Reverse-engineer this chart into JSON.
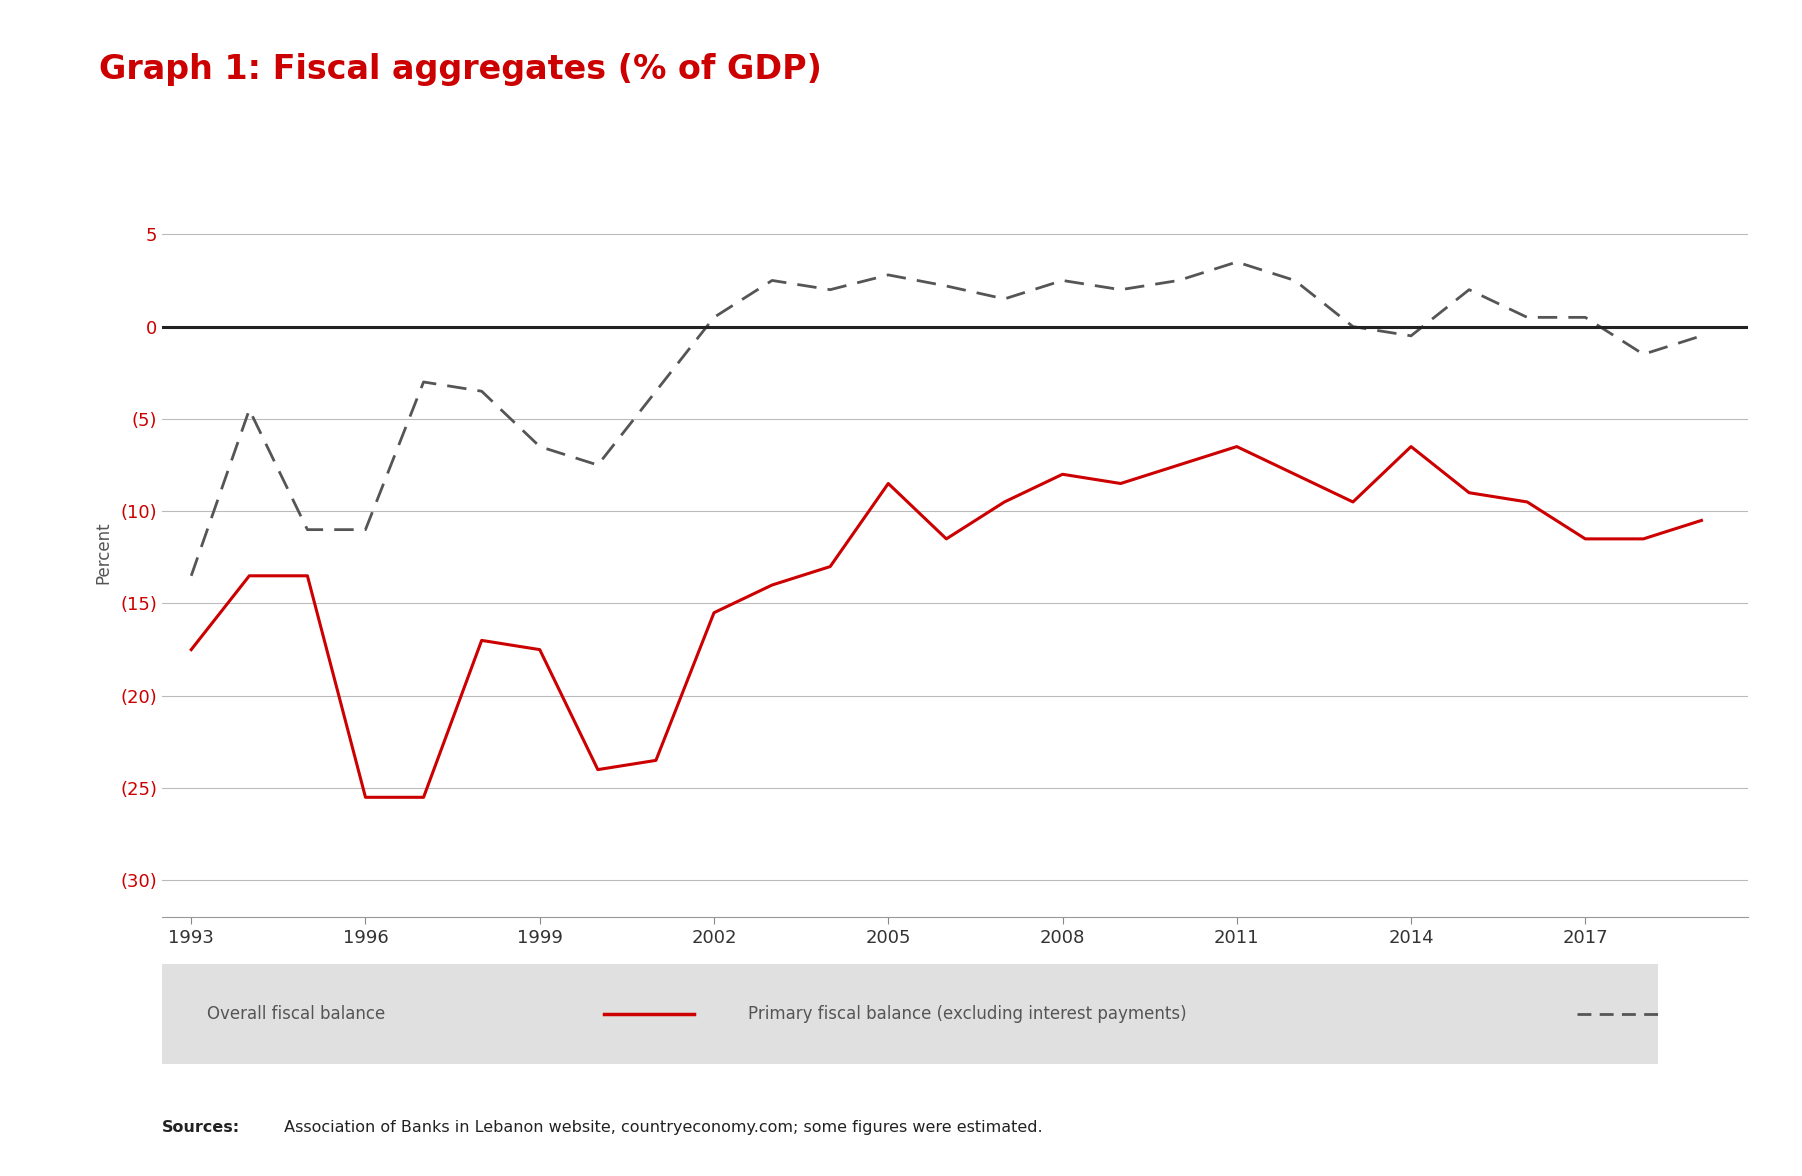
{
  "title": "Graph 1: Fiscal aggregates (% of GDP)",
  "title_color": "#cc0000",
  "title_fontsize": 24,
  "ylabel": "Percent",
  "ylabel_fontsize": 12,
  "background_color": "#ffffff",
  "plot_bg_color": "#ffffff",
  "xlim": [
    1992.5,
    2019.8
  ],
  "ylim": [
    -32,
    7.5
  ],
  "yticks": [
    5,
    0,
    -5,
    -10,
    -15,
    -20,
    -25,
    -30
  ],
  "ytick_labels": [
    "5",
    "0",
    "(5)",
    "(10)",
    "(15)",
    "(20)",
    "(25)",
    "(30)"
  ],
  "xtick_labels": [
    "1993",
    "1996",
    "1999",
    "2002",
    "2005",
    "2008",
    "2011",
    "2014",
    "2017"
  ],
  "xtick_values": [
    1993,
    1996,
    1999,
    2002,
    2005,
    2008,
    2011,
    2014,
    2017
  ],
  "grid_color": "#bbbbbb",
  "zero_line_color": "#222222",
  "overall_fiscal_balance": {
    "years": [
      1993,
      1994,
      1995,
      1996,
      1997,
      1998,
      1999,
      2000,
      2001,
      2002,
      2003,
      2004,
      2005,
      2006,
      2007,
      2008,
      2009,
      2010,
      2011,
      2012,
      2013,
      2014,
      2015,
      2016,
      2017,
      2018,
      2019
    ],
    "values": [
      -17.5,
      -13.5,
      -13.5,
      -25.5,
      -25.5,
      -17.0,
      -17.5,
      -24.0,
      -23.5,
      -15.5,
      -14.0,
      -13.0,
      -8.5,
      -11.5,
      -9.5,
      -8.0,
      -8.5,
      -7.5,
      -6.5,
      -8.0,
      -9.5,
      -6.5,
      -9.0,
      -9.5,
      -11.5,
      -11.5,
      -10.5
    ],
    "color": "#cc0000",
    "linewidth": 2.2
  },
  "primary_fiscal_balance": {
    "years": [
      1993,
      1994,
      1995,
      1996,
      1997,
      1998,
      1999,
      2000,
      2001,
      2002,
      2003,
      2004,
      2005,
      2006,
      2007,
      2008,
      2009,
      2010,
      2011,
      2012,
      2013,
      2014,
      2015,
      2016,
      2017,
      2018,
      2019
    ],
    "values": [
      -13.5,
      -4.5,
      -11.0,
      -11.0,
      -3.0,
      -3.5,
      -6.5,
      -7.5,
      -3.5,
      0.5,
      2.5,
      2.0,
      2.8,
      2.2,
      1.5,
      2.5,
      2.0,
      2.5,
      3.5,
      2.5,
      0.0,
      -0.5,
      2.0,
      0.5,
      0.5,
      -1.5,
      -0.5
    ],
    "color": "#555555",
    "linewidth": 2.0
  },
  "legend_bg_color": "#e0e0e0",
  "sources_bold": "Sources:",
  "sources_rest": " Association of Banks in Lebanon website, countryeconomy.com; some figures were estimated."
}
